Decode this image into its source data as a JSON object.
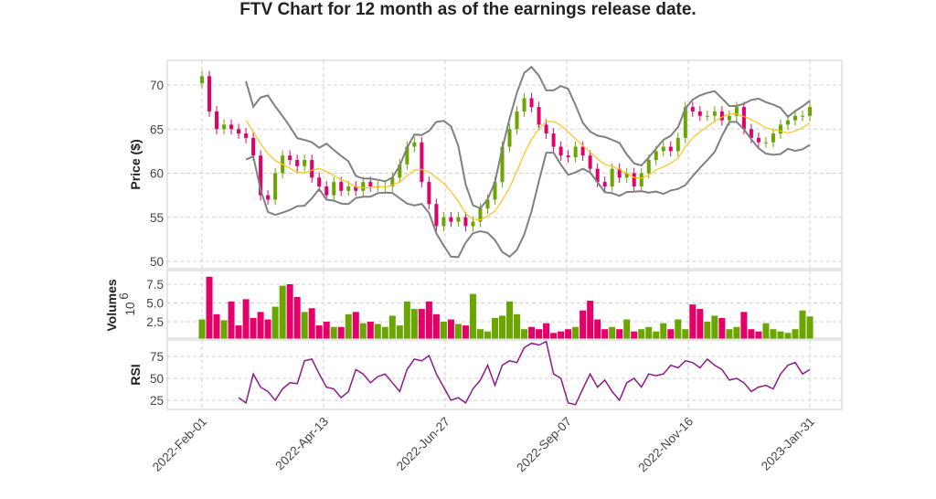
{
  "chart_data": {
    "type": "candlestick",
    "title": "FTV Chart for 12 month as of the earnings release date.",
    "x_ticks": [
      "2022-Feb-01",
      "2022-Apr-13",
      "2022-Jun-27",
      "2022-Sep-07",
      "2022-Nov-16",
      "2023-Jan-31"
    ],
    "x_range": [
      "2022-Feb-01",
      "2023-Jan-31"
    ],
    "price_panel": {
      "ylabel": "Price ($)",
      "ylim": [
        49.5,
        72.8
      ],
      "yticks": [
        "50",
        "55",
        "60",
        "65",
        "70"
      ],
      "close": [
        71,
        67,
        65,
        65.5,
        65,
        64.5,
        64,
        62,
        57.5,
        57,
        60,
        62,
        61.5,
        60.8,
        61.5,
        59.5,
        58.5,
        57.5,
        59,
        58,
        58.5,
        58,
        59,
        58.5,
        58.5,
        58.5,
        59.5,
        61,
        63,
        63.5,
        59,
        56.5,
        54,
        55,
        54.5,
        55,
        54,
        54.5,
        56,
        57,
        59,
        63,
        65,
        67,
        68.5,
        67.5,
        65.5,
        64.5,
        63,
        62,
        61.8,
        63,
        62,
        60.5,
        59,
        58.5,
        60.5,
        59.5,
        60,
        58.5,
        60,
        61.5,
        62.5,
        63,
        62.5,
        64,
        67.5,
        67,
        66.5,
        66.5,
        67,
        66,
        66.5,
        67.5,
        65,
        64,
        63.5,
        63.5,
        64.5,
        65.5,
        66,
        66.5,
        66.5,
        67.5
      ],
      "overlays": [
        "SMA (yellow)",
        "Bollinger Bands (gray)"
      ]
    },
    "volume_panel": {
      "ylabel": "Volumes",
      "multiplier": "10",
      "exponent": "6",
      "ylim": [
        0,
        9
      ],
      "yticks": [
        "2.5",
        "5.0",
        "7.5"
      ],
      "values": [
        2.8,
        8.5,
        3.5,
        2.7,
        5.2,
        2,
        5.5,
        3,
        3.8,
        2.8,
        4.5,
        7.3,
        7.5,
        5.8,
        3.8,
        4.3,
        2,
        2.5,
        1.8,
        1.8,
        3.5,
        3.8,
        2.3,
        2.5,
        2.2,
        1.8,
        3.3,
        2,
        5.2,
        4.2,
        4.2,
        5.2,
        3.5,
        2.5,
        2.8,
        2.2,
        2,
        6.2,
        1.5,
        1.2,
        3,
        3.3,
        5.2,
        3.5,
        1.5,
        1.8,
        1.5,
        2.3,
        1,
        1.2,
        1.5,
        1.8,
        4,
        5.3,
        2.8,
        1.5,
        1.8,
        1.5,
        2.8,
        1.2,
        1.5,
        1.8,
        1.2,
        2.3,
        1.5,
        2.8,
        1.5,
        4.8,
        4.2,
        2.5,
        3.3,
        3,
        1.5,
        1.8,
        3.8,
        1.5,
        1.2,
        2.3,
        1.5,
        1.2,
        1,
        1.5,
        4,
        3.2
      ]
    },
    "rsi_panel": {
      "ylabel": "RSI",
      "ylim": [
        15,
        98
      ],
      "yticks": [
        "25",
        "50",
        "75"
      ],
      "values": [
        null,
        null,
        null,
        null,
        null,
        28,
        22,
        55,
        40,
        35,
        25,
        38,
        45,
        44,
        70,
        72,
        55,
        40,
        38,
        28,
        35,
        60,
        55,
        45,
        52,
        55,
        45,
        35,
        60,
        72,
        70,
        76,
        55,
        40,
        25,
        28,
        22,
        38,
        48,
        65,
        42,
        65,
        70,
        68,
        85,
        90,
        88,
        92,
        55,
        50,
        22,
        20,
        38,
        55,
        40,
        48,
        35,
        25,
        45,
        50,
        40,
        55,
        53,
        55,
        65,
        62,
        70,
        68,
        62,
        72,
        65,
        60,
        48,
        50,
        45,
        35,
        40,
        42,
        38,
        55,
        65,
        68,
        55,
        60
      ]
    },
    "colors": {
      "up": "#6aa500",
      "down": "#e2006a",
      "sma": "#ffc21a",
      "bands": "#808080",
      "rsi": "#8b1a8b",
      "grid": "#d0d0d0"
    }
  }
}
